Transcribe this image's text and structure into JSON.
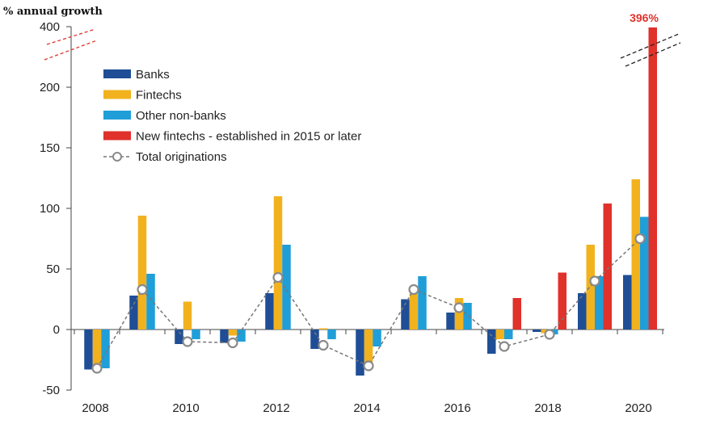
{
  "chart_data": {
    "type": "bar",
    "unit_label": "% annual growth",
    "x": [
      2008,
      2009,
      2010,
      2011,
      2012,
      2013,
      2014,
      2015,
      2016,
      2017,
      2018,
      2019,
      2020
    ],
    "x_tick_labels": [
      "2008",
      "2010",
      "2012",
      "2014",
      "2016",
      "2018",
      "2020"
    ],
    "y_ticks": [
      -50,
      0,
      50,
      100,
      150,
      200,
      400
    ],
    "y_axis_break": "between 200 and 400",
    "series": [
      {
        "name": "Banks",
        "kind": "bar",
        "color": "#1f4e96",
        "values": [
          -33,
          28,
          -12,
          -11,
          30,
          -16,
          -38,
          25,
          14,
          -20,
          -2,
          30,
          45
        ]
      },
      {
        "name": "Fintechs",
        "kind": "bar",
        "color": "#f2b21e",
        "values": [
          -30,
          94,
          23,
          -5,
          110,
          1,
          -28,
          31,
          26,
          -8,
          -3,
          70,
          124
        ]
      },
      {
        "name": "Other non-banks",
        "kind": "bar",
        "color": "#1f9ed8",
        "values": [
          -32,
          46,
          -8,
          -10,
          70,
          -8,
          -14,
          44,
          22,
          -8,
          -4,
          44,
          93
        ]
      },
      {
        "name": "New fintechs - established in 2015 or later",
        "kind": "bar",
        "color": "#e0312b",
        "values": [
          null,
          null,
          null,
          null,
          null,
          null,
          null,
          null,
          null,
          26,
          47,
          104,
          396
        ]
      },
      {
        "name": "Total originations",
        "kind": "line",
        "color": "#777777",
        "values": [
          -32,
          33,
          -10,
          -11,
          43,
          -13,
          -30,
          33,
          18,
          -14,
          -4,
          40,
          75
        ]
      }
    ],
    "annotations": [
      {
        "text": "396%",
        "x": 2020,
        "color": "#e0312b"
      }
    ],
    "legend_position": "top-left"
  }
}
